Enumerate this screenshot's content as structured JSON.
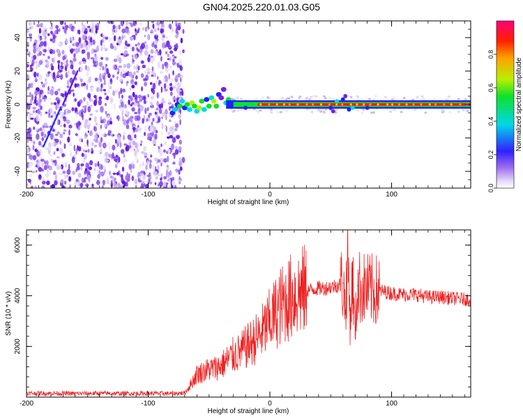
{
  "figure": {
    "title": "GN04.2025.220.01.03.G05"
  },
  "colorbar": {
    "label": "Normalized spectral amplitude",
    "ticks": [
      "0.0",
      "0.2",
      "0.4",
      "0.6",
      "0.8"
    ],
    "tick_values": [
      0.0,
      0.2,
      0.4,
      0.6,
      0.8
    ],
    "range": [
      0.0,
      1.0
    ],
    "colormap": [
      "#ffffff",
      "#c9b6f0",
      "#7a1fe6",
      "#1b24ff",
      "#00d8e8",
      "#10e02a",
      "#b8f000",
      "#ffa000",
      "#ff2000",
      "#ff007a"
    ]
  },
  "chart_data": [
    {
      "type": "heatmap",
      "title": "",
      "xlabel": "Height of straight line (km)",
      "ylabel": "Frequency (Hz)",
      "xlim": [
        -200,
        165
      ],
      "ylim": [
        -50,
        50
      ],
      "x_ticks": [
        "-200",
        "-100",
        "0",
        "100"
      ],
      "x_tick_values": [
        -200,
        -100,
        0,
        100
      ],
      "y_ticks": [
        "-40",
        "-20",
        "0",
        "20",
        "40"
      ],
      "y_tick_values": [
        -40,
        -20,
        0,
        20,
        40
      ],
      "noise_region_x": [
        -200,
        -71
      ],
      "signal_line_frequency": 0,
      "signal_start_x": -80,
      "peak_amplitude": 1.0,
      "grid": false
    },
    {
      "type": "line",
      "title": "",
      "xlabel": "Height of straight line (km)",
      "ylabel": "SNR (10 * v/v)",
      "xlim": [
        -200,
        165
      ],
      "ylim": [
        0,
        6600
      ],
      "x_ticks": [
        "-200",
        "-100",
        "0",
        "100"
      ],
      "x_tick_values": [
        -200,
        -100,
        0,
        100
      ],
      "y_ticks": [
        "2000",
        "4000",
        "6000"
      ],
      "y_tick_values": [
        2000,
        4000,
        6000
      ],
      "line_color": "#ee2222",
      "series": [
        {
          "x": [
            -200,
            -180,
            -160,
            -140,
            -120,
            -100,
            -80,
            -70,
            -65,
            -60,
            -55,
            -50,
            -45,
            -40,
            -35,
            -30,
            -25,
            -20,
            -15,
            -10,
            -5,
            0,
            5,
            10,
            15,
            20,
            25,
            30,
            35,
            40,
            45,
            50,
            55,
            60,
            62,
            64,
            66,
            68,
            70,
            72,
            75,
            80,
            85,
            90,
            95,
            100,
            110,
            120,
            130,
            140,
            150,
            165
          ],
          "y": [
            150,
            150,
            140,
            150,
            140,
            150,
            140,
            160,
            500,
            900,
            1000,
            1100,
            1150,
            1250,
            1450,
            1650,
            1750,
            1950,
            2150,
            2350,
            2650,
            3000,
            3350,
            3650,
            3850,
            4050,
            4150,
            4200,
            4250,
            4300,
            4300,
            4350,
            4400,
            4500,
            3500,
            5500,
            3000,
            4800,
            2500,
            4400,
            4300,
            4250,
            4200,
            4200,
            4150,
            4100,
            4050,
            4050,
            3950,
            3950,
            3900,
            3850
          ]
        }
      ],
      "grid": false
    }
  ]
}
